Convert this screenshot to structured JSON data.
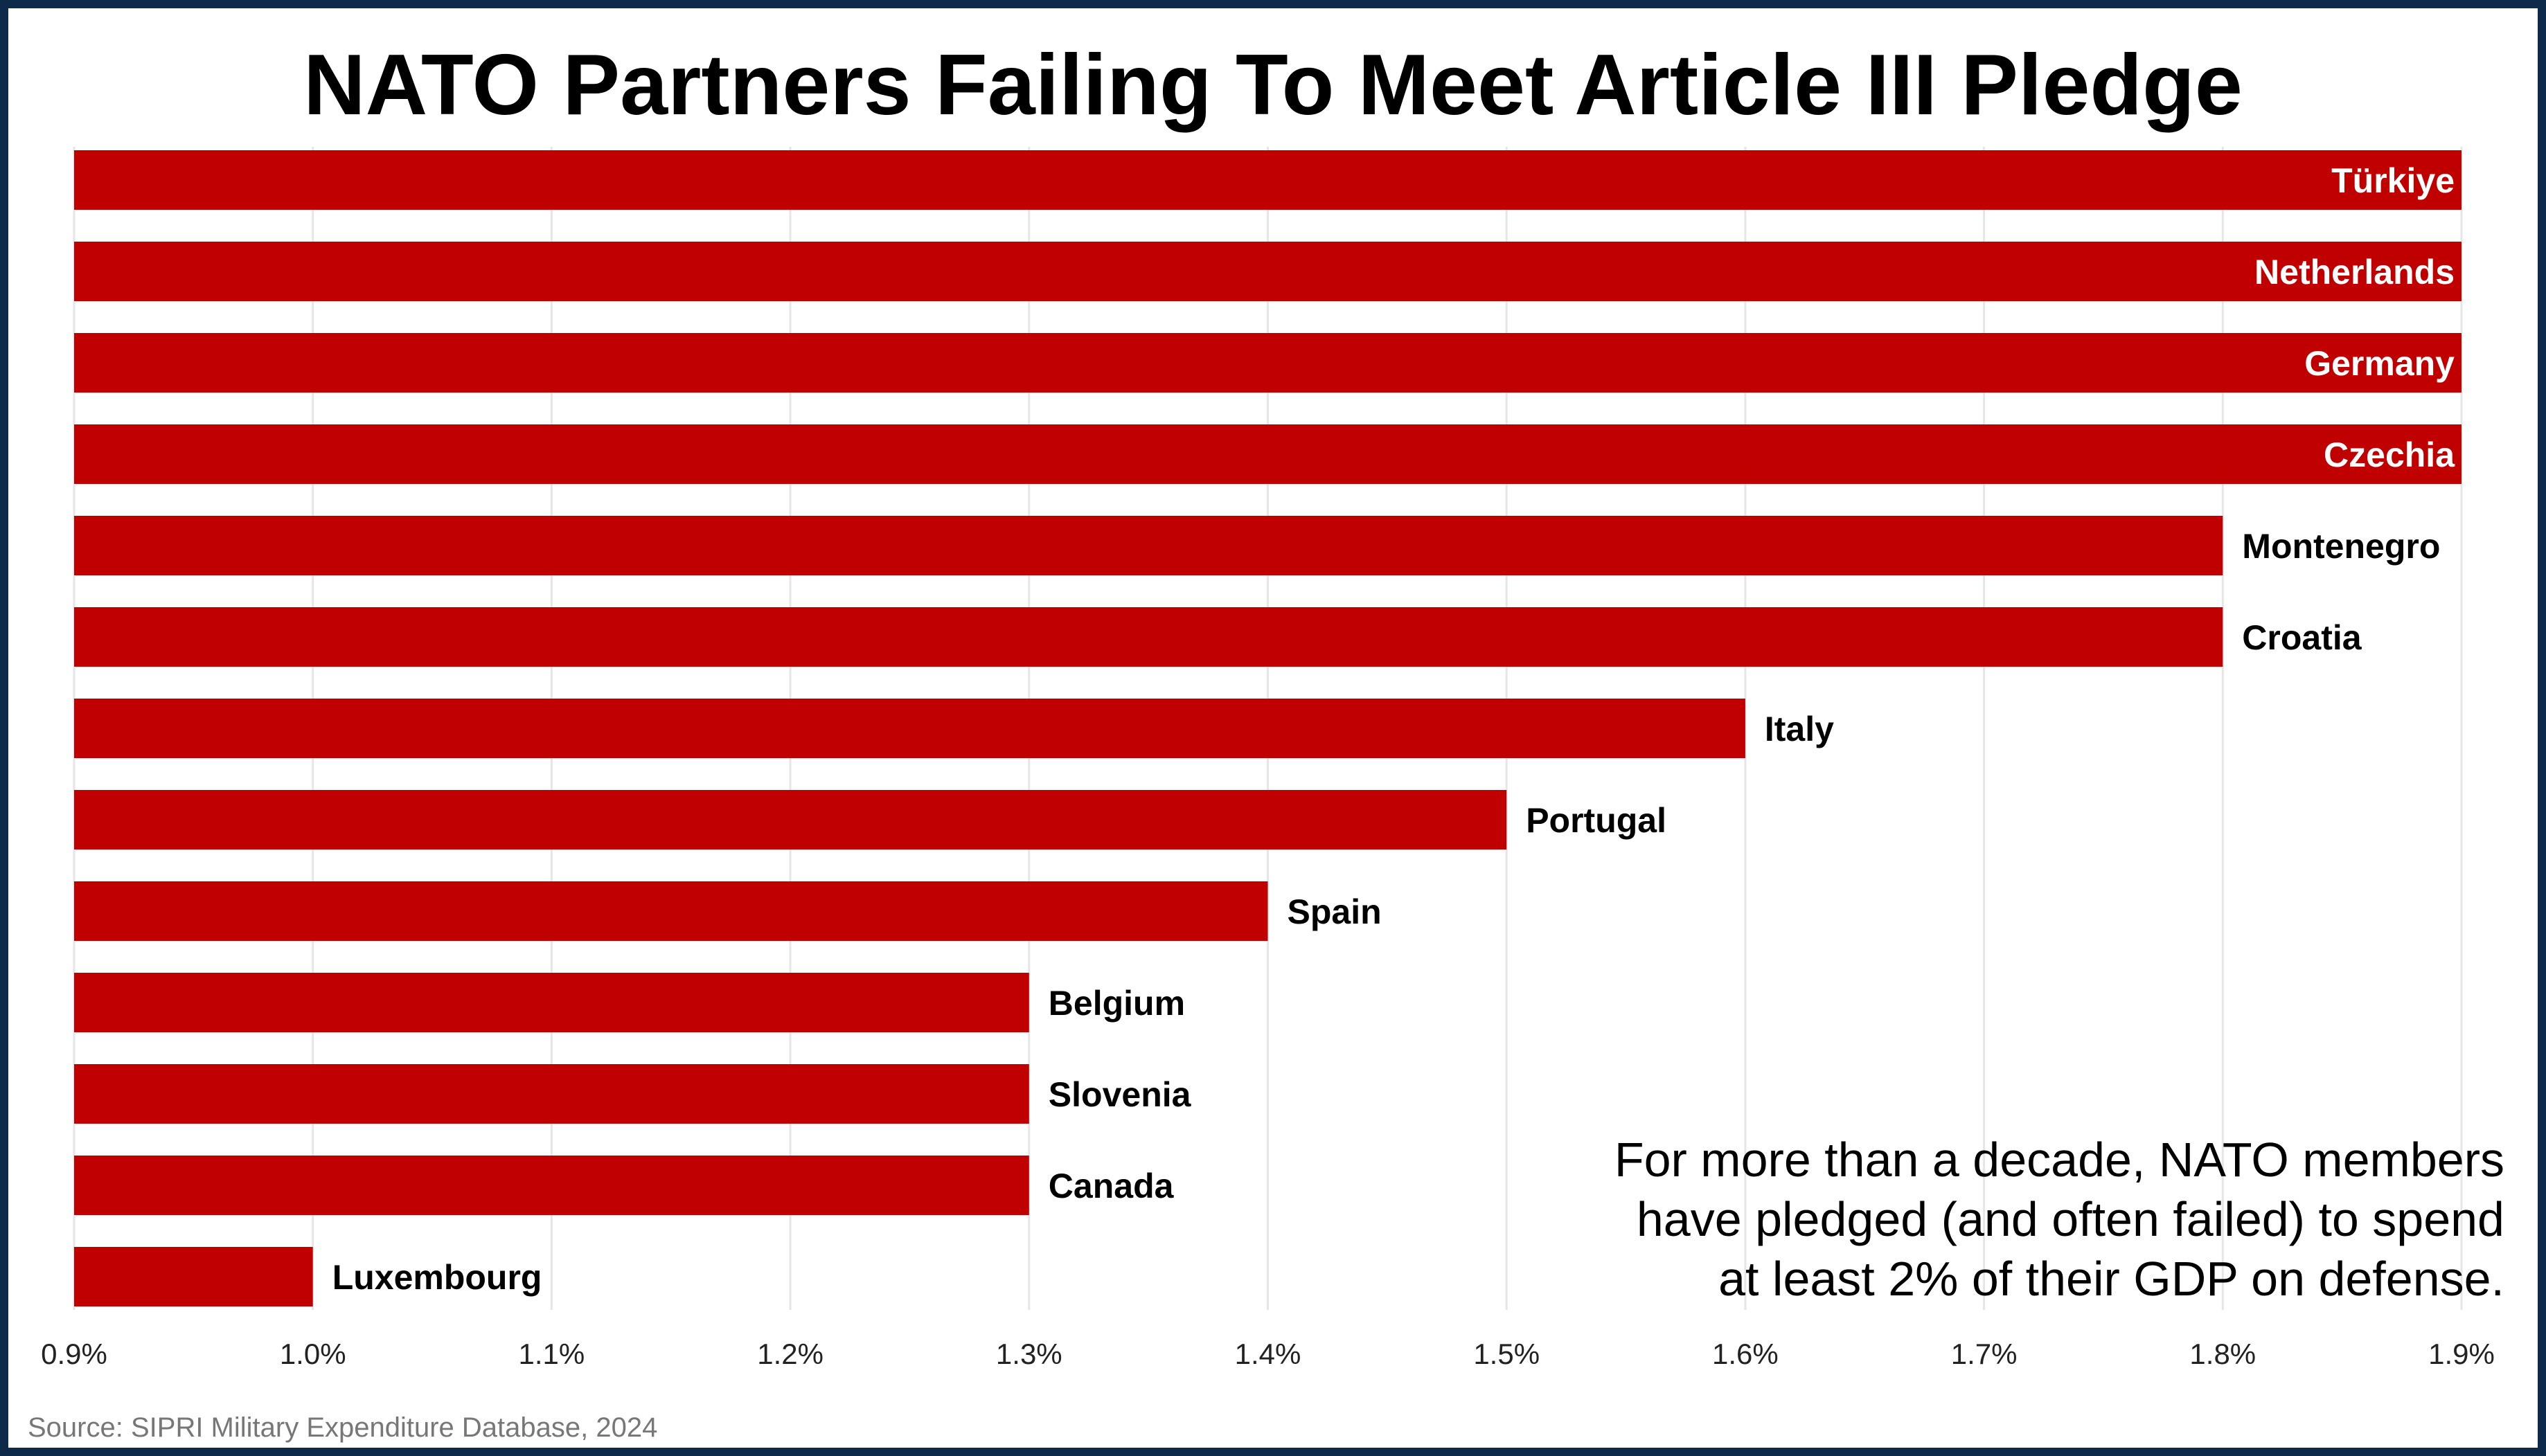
{
  "chart_data": {
    "type": "bar",
    "orientation": "horizontal",
    "title": "NATO Partners Failing To Meet Article III Pledge",
    "categories": [
      "Türkiye",
      "Netherlands",
      "Germany",
      "Czechia",
      "Montenegro",
      "Croatia",
      "Italy",
      "Portugal",
      "Spain",
      "Belgium",
      "Slovenia",
      "Canada",
      "Luxembourg"
    ],
    "values": [
      1.9,
      1.9,
      1.9,
      1.9,
      1.8,
      1.8,
      1.6,
      1.5,
      1.4,
      1.3,
      1.3,
      1.3,
      1.0
    ],
    "xlim": [
      0.9,
      1.9
    ],
    "xticks": [
      "0.9%",
      "1.0%",
      "1.1%",
      "1.2%",
      "1.3%",
      "1.4%",
      "1.5%",
      "1.6%",
      "1.7%",
      "1.8%",
      "1.9%"
    ],
    "xlabel": "",
    "ylabel": "",
    "grid": "vertical",
    "bar_color": "#c00000",
    "annotation": [
      "For more than a decade, NATO members",
      "have pledged (and often failed) to spend",
      "at least 2% of their GDP on defense."
    ],
    "source": "Source: SIPRI Military Expenditure Database, 2024"
  },
  "colors": {
    "frame": "#0d2a4a",
    "bar": "#c00000",
    "grid": "#e6e6e6",
    "label_inside": "#ffffff",
    "label_outside": "#000000",
    "source_text": "#777777"
  }
}
